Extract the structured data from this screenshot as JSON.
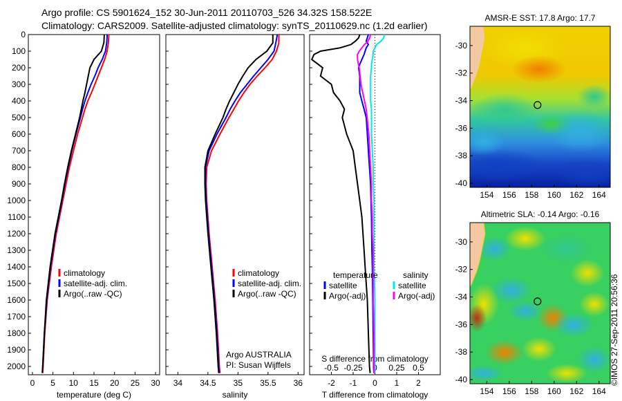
{
  "header": {
    "line1": "Argo profile: CS 5901624_152 30-Jun-2011 20110703_526 34.32S 158.522E",
    "line2": "Climatology: CARS2009. Satellite-adjusted climatology: synTS_20110629.nc (1.2d earlier)"
  },
  "colors": {
    "climatology": "#ff0000",
    "satellite": "#0000ff",
    "argo": "#000000",
    "sat_salinity": "#00e8f0",
    "argo_salinity": "#ff00ff",
    "land": "#f4c8a0"
  },
  "credit": "©IMOS 27-Sep-2011 20:56:36",
  "annotations": {
    "org": "Argo AUSTRALIA",
    "pi": "PI: Susan Wijffels"
  },
  "depth_ticks": [
    "0",
    "100",
    "200",
    "300",
    "400",
    "500",
    "600",
    "700",
    "800",
    "900",
    "1000",
    "1100",
    "1200",
    "1300",
    "1400",
    "1500",
    "1600",
    "1700",
    "1800",
    "1900",
    "2000"
  ],
  "chart_data": [
    {
      "type": "line",
      "name": "temperature",
      "xlabel": "temperature (deg C)",
      "xlim": [
        -1,
        31
      ],
      "ylim": [
        0,
        2050
      ],
      "xticks": [
        "0",
        "5",
        "10",
        "15",
        "20",
        "25",
        "30"
      ],
      "legend": [
        "climatology",
        "satellite-adj. clim.",
        "Argo(..raw -QC)"
      ],
      "depth": [
        0,
        10,
        50,
        100,
        150,
        200,
        250,
        300,
        350,
        400,
        450,
        500,
        600,
        700,
        800,
        900,
        1000,
        1200,
        1400,
        1600,
        1800,
        2000,
        2040
      ],
      "series": [
        {
          "name": "climatology",
          "values": [
            18.6,
            18.6,
            18.5,
            18.2,
            17.6,
            16.8,
            16.0,
            15.2,
            14.4,
            13.5,
            12.8,
            12.2,
            11.0,
            10.0,
            9.0,
            8.2,
            7.4,
            5.8,
            4.6,
            3.6,
            3.0,
            2.6,
            2.5
          ]
        },
        {
          "name": "satellite-adj. clim.",
          "values": [
            18.2,
            18.2,
            18.1,
            17.8,
            17.0,
            16.0,
            15.2,
            14.3,
            13.5,
            12.8,
            12.2,
            11.7,
            10.6,
            9.6,
            8.7,
            7.9,
            7.2,
            5.6,
            4.4,
            3.5,
            2.9,
            2.5,
            2.4
          ]
        },
        {
          "name": "Argo(..raw -QC)",
          "values": [
            17.5,
            17.5,
            17.4,
            16.8,
            15.0,
            14.0,
            13.6,
            13.2,
            12.8,
            12.3,
            11.9,
            11.5,
            10.5,
            9.5,
            8.6,
            7.8,
            7.1,
            5.5,
            4.3,
            3.4,
            2.9,
            2.5,
            2.4
          ]
        }
      ]
    },
    {
      "type": "line",
      "name": "salinity",
      "xlabel": "salinity",
      "xlim": [
        33.8,
        36.1
      ],
      "ylim": [
        0,
        2050
      ],
      "xticks": [
        "34",
        "34.5",
        "35",
        "35.5",
        "36"
      ],
      "legend": [
        "climatology",
        "satellite-adj. clim.",
        "Argo(..raw -QC)"
      ],
      "depth": [
        0,
        10,
        50,
        100,
        150,
        200,
        250,
        300,
        350,
        400,
        450,
        500,
        600,
        700,
        800,
        900,
        1000,
        1200,
        1400,
        1600,
        1800,
        2000,
        2040
      ],
      "series": [
        {
          "name": "climatology",
          "values": [
            35.68,
            35.68,
            35.68,
            35.64,
            35.57,
            35.45,
            35.32,
            35.2,
            35.1,
            35.01,
            34.93,
            34.85,
            34.7,
            34.56,
            34.48,
            34.47,
            34.48,
            34.52,
            34.57,
            34.62,
            34.66,
            34.69,
            34.7
          ]
        },
        {
          "name": "satellite-adj. clim.",
          "values": [
            35.65,
            35.65,
            35.63,
            35.6,
            35.5,
            35.38,
            35.26,
            35.15,
            35.04,
            34.95,
            34.87,
            34.8,
            34.65,
            34.52,
            34.46,
            34.46,
            34.47,
            34.51,
            34.56,
            34.61,
            34.65,
            34.68,
            34.69
          ]
        },
        {
          "name": "Argo(..raw -QC)",
          "values": [
            35.58,
            35.58,
            35.58,
            35.48,
            35.3,
            35.17,
            35.08,
            35.0,
            34.93,
            34.86,
            34.8,
            34.75,
            34.62,
            34.5,
            34.45,
            34.45,
            34.46,
            34.5,
            34.55,
            34.6,
            34.64,
            34.67,
            34.68
          ]
        }
      ]
    },
    {
      "type": "line",
      "name": "difference",
      "xlabel": "T difference from climatology",
      "xlabel_top": "S difference from climatology",
      "xlim": [
        -3,
        3
      ],
      "ylim": [
        0,
        2050
      ],
      "xticks": [
        "-2",
        "-1",
        "0",
        "1",
        "2"
      ],
      "xticks_top": [
        "-0.5",
        "-0.25",
        "0",
        "0.25",
        "0.5"
      ],
      "legend_headings": [
        "temperature",
        "salinity"
      ],
      "legend": [
        "satellite",
        "Argo(-adj)",
        "satellite",
        "Argo(-adj)"
      ],
      "depth": [
        0,
        20,
        40,
        60,
        80,
        100,
        120,
        150,
        180,
        200,
        250,
        300,
        350,
        400,
        450,
        500,
        600,
        700,
        800,
        900,
        1000,
        1100,
        1200,
        1300,
        1400,
        1600,
        1800,
        2000,
        2040
      ],
      "series": [
        {
          "name": "temperature satellite",
          "values": [
            -0.3,
            -0.35,
            -0.4,
            -0.3,
            -0.4,
            -0.45,
            -0.5,
            -0.6,
            -0.7,
            -0.75,
            -0.7,
            -0.7,
            -0.7,
            -0.6,
            -0.5,
            -0.4,
            -0.35,
            -0.3,
            -0.25,
            -0.2,
            -0.18,
            -0.16,
            -0.15,
            -0.14,
            -0.12,
            -0.1,
            -0.08,
            -0.06,
            -0.05
          ]
        },
        {
          "name": "temperature Argo(-adj)",
          "values": [
            -0.7,
            -0.75,
            -0.9,
            -1.1,
            -1.6,
            -2.5,
            -2.8,
            -2.9,
            -2.6,
            -2.4,
            -2.5,
            -2.0,
            -1.9,
            -1.6,
            -1.4,
            -1.5,
            -1.3,
            -1.0,
            -0.9,
            -0.8,
            -0.7,
            -0.6,
            -0.55,
            -0.5,
            -0.45,
            -0.35,
            -0.3,
            -0.25,
            -0.22
          ]
        },
        {
          "name": "salinity satellite",
          "values": [
            0.11,
            0.1,
            0.07,
            0.02,
            0.0,
            -0.02,
            -0.02,
            -0.03,
            -0.04,
            -0.04,
            -0.05,
            -0.05,
            -0.05,
            -0.05,
            -0.04,
            -0.04,
            -0.04,
            -0.03,
            -0.02,
            -0.02,
            -0.01,
            -0.01,
            -0.01,
            -0.01,
            -0.01,
            0.0,
            0.0,
            0.0,
            0.0
          ]
        },
        {
          "name": "salinity Argo(-adj)",
          "values": [
            -0.05,
            -0.06,
            -0.08,
            -0.12,
            -0.15,
            -0.18,
            -0.2,
            -0.2,
            -0.19,
            -0.18,
            -0.17,
            -0.16,
            -0.14,
            -0.12,
            -0.1,
            -0.09,
            -0.07,
            -0.06,
            -0.05,
            -0.04,
            -0.04,
            -0.03,
            -0.03,
            -0.02,
            -0.02,
            -0.02,
            -0.01,
            -0.01,
            -0.01
          ]
        }
      ]
    },
    {
      "type": "heatmap",
      "name": "sst-map",
      "title": "AMSR-E SST: 17.8 Argo: 17.7",
      "xticks": [
        "154",
        "156",
        "158",
        "160",
        "162",
        "164"
      ],
      "yticks": [
        "-30",
        "-32",
        "-34",
        "-36",
        "-38",
        "-40"
      ],
      "xlim": [
        152.5,
        165.0
      ],
      "ylim": [
        -40.3,
        -28.6
      ],
      "argo_position": {
        "lon": 158.52,
        "lat": -34.32
      }
    },
    {
      "type": "heatmap",
      "name": "sla-map",
      "title": "Altimetric SLA: -0.14 Argo: -0.16",
      "xticks": [
        "154",
        "156",
        "158",
        "160",
        "162",
        "164"
      ],
      "yticks": [
        "-30",
        "-32",
        "-34",
        "-36",
        "-38",
        "-40"
      ],
      "xlim": [
        152.5,
        165.0
      ],
      "ylim": [
        -40.3,
        -28.6
      ],
      "argo_position": {
        "lon": 158.52,
        "lat": -34.32
      }
    }
  ]
}
